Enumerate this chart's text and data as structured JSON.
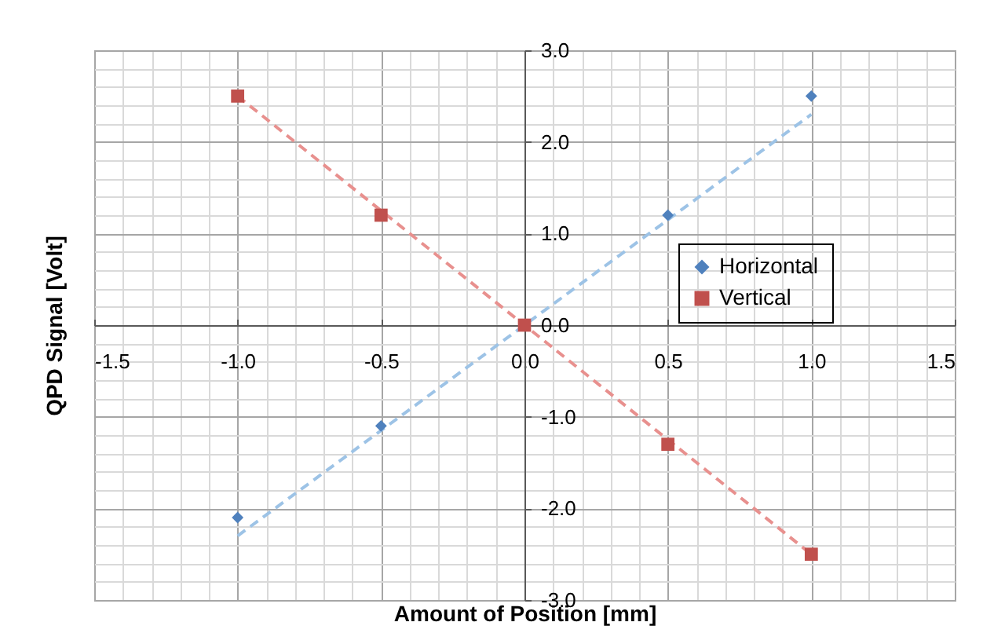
{
  "chart_data": {
    "type": "scatter",
    "xlabel": "Amount of Position [mm]",
    "ylabel": "QPD Signal [Volt]",
    "xlim": [
      -1.5,
      1.5
    ],
    "xticks": [
      {
        "value": -1.5,
        "label": "-1.5"
      },
      {
        "value": -1,
        "label": "-1.0"
      },
      {
        "value": -0.5,
        "label": "-0.5"
      },
      {
        "value": 0,
        "label": "0.0"
      },
      {
        "value": 0.5,
        "label": "0.5"
      },
      {
        "value": 1,
        "label": "1.0"
      },
      {
        "value": 1.5,
        "label": "1.5"
      }
    ],
    "ylim": [
      -3,
      3
    ],
    "yticks": [
      {
        "value": -3,
        "label": "-3.0"
      },
      {
        "value": -2,
        "label": "-2.0"
      },
      {
        "value": -1,
        "label": "-1.0"
      },
      {
        "value": 0,
        "label": "0.0"
      },
      {
        "value": 1,
        "label": "1.0"
      },
      {
        "value": 2,
        "label": "2.0"
      },
      {
        "value": 3,
        "label": "3.0"
      }
    ],
    "grid": true,
    "legend": "right",
    "series": [
      {
        "type": "line",
        "color": "#9dc3e6",
        "line_style": "dashed",
        "x": [
          -1,
          1
        ],
        "values": [
          -2.3,
          2.3
        ]
      },
      {
        "type": "line",
        "color": "#e8908e",
        "line_style": "dashed",
        "x": [
          -1,
          1
        ],
        "values": [
          2.5,
          -2.5
        ]
      },
      {
        "name": "Horizontal",
        "color": "#4f81bd",
        "marker": "diamond",
        "x": [
          -1,
          -0.5,
          0,
          0.5,
          1
        ],
        "values": [
          -2.1,
          -1.1,
          null,
          1.2,
          2.5
        ]
      },
      {
        "name": "Vertical",
        "color": "#c0504d",
        "marker": "square",
        "x": [
          -1,
          -0.5,
          0,
          0.5,
          1
        ],
        "values": [
          2.5,
          1.2,
          0,
          -1.3,
          -2.5
        ]
      }
    ]
  }
}
